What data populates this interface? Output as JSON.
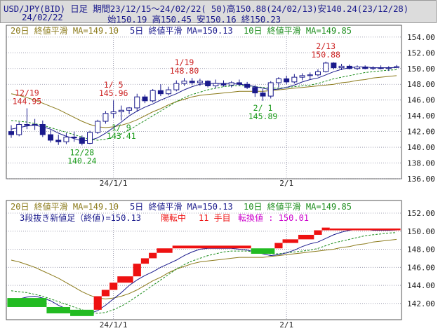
{
  "header": {
    "line1": "USD/JPY(BID) 日足 期間23/12/15～24/02/22( 50)高150.88(24/02/13)安140.24(23/12/28)",
    "date": "24/02/22",
    "ohlc": "始150.19 高150.45 安150.16 終150.23"
  },
  "colors": {
    "ma20": "#8b7a1a",
    "ma5": "#1a1a8c",
    "ma10": "#1a8c1a",
    "candle": "#1a1a8c",
    "up": "#ee1111",
    "down": "#22bb22",
    "grid": "#8a8aa0",
    "hiAnnot": "#cc2020",
    "loAnnot": "#1a9a1a",
    "prompt": "#cc00cc"
  },
  "chart_data": [
    {
      "type": "candlestick",
      "legend": {
        "ma20": "20日 終値平滑 MA=149.10",
        "ma5": "5日 終値平滑 MA=150.13",
        "ma10": "10日 終値平滑 MA=149.85"
      },
      "ylim": [
        136,
        155.5
      ],
      "y_ticks": [
        "136.00",
        "138.00",
        "140.00",
        "142.00",
        "144.00",
        "146.00",
        "148.00",
        "150.00",
        "152.00",
        "154.00"
      ],
      "x_ticks": [
        "24/1/1",
        "2/1"
      ],
      "candles": [
        [
          142.0,
          142.8,
          141.2,
          141.6
        ],
        [
          141.6,
          143.2,
          141.4,
          142.9
        ],
        [
          142.9,
          144.95,
          142.3,
          142.8
        ],
        [
          142.8,
          143.6,
          142.2,
          142.9
        ],
        [
          142.9,
          143.4,
          141.3,
          141.6
        ],
        [
          141.6,
          142.2,
          140.6,
          140.9
        ],
        [
          140.9,
          141.6,
          140.3,
          140.7
        ],
        [
          140.7,
          141.8,
          140.4,
          141.3
        ],
        [
          141.3,
          142.0,
          140.7,
          141.2
        ],
        [
          141.2,
          141.5,
          140.24,
          140.5
        ],
        [
          140.5,
          142.1,
          140.4,
          141.9
        ],
        [
          141.9,
          143.5,
          141.7,
          143.3
        ],
        [
          143.3,
          144.6,
          143.0,
          144.3
        ],
        [
          144.3,
          145.96,
          143.7,
          144.5
        ],
        [
          144.5,
          145.3,
          143.41,
          144.7
        ],
        [
          144.7,
          145.1,
          144.2,
          145.0
        ],
        [
          145.0,
          146.8,
          144.5,
          146.4
        ],
        [
          146.4,
          146.7,
          145.6,
          145.9
        ],
        [
          145.9,
          147.4,
          145.7,
          147.2
        ],
        [
          147.2,
          148.0,
          146.5,
          146.8
        ],
        [
          146.8,
          147.7,
          146.6,
          147.3
        ],
        [
          147.3,
          148.5,
          147.1,
          148.1
        ],
        [
          148.1,
          148.8,
          147.8,
          148.4
        ],
        [
          148.4,
          148.8,
          147.9,
          148.2
        ],
        [
          148.2,
          148.7,
          147.8,
          148.4
        ],
        [
          148.4,
          148.5,
          147.6,
          147.8
        ],
        [
          147.8,
          148.6,
          147.5,
          148.1
        ],
        [
          148.1,
          148.5,
          147.7,
          147.9
        ],
        [
          147.9,
          148.4,
          147.6,
          148.2
        ],
        [
          148.2,
          148.6,
          147.8,
          148.0
        ],
        [
          148.0,
          148.3,
          147.4,
          147.6
        ],
        [
          147.6,
          147.9,
          146.4,
          146.9
        ],
        [
          146.9,
          147.4,
          145.89,
          146.5
        ],
        [
          146.5,
          148.4,
          146.2,
          148.2
        ],
        [
          148.2,
          148.9,
          147.6,
          148.7
        ],
        [
          148.7,
          149.1,
          148.0,
          148.3
        ],
        [
          148.3,
          149.3,
          148.1,
          148.9
        ],
        [
          148.9,
          149.4,
          148.5,
          149.1
        ],
        [
          149.1,
          149.5,
          148.6,
          149.2
        ],
        [
          149.2,
          149.9,
          149.0,
          149.6
        ],
        [
          149.6,
          150.88,
          149.5,
          150.7
        ],
        [
          150.7,
          150.8,
          149.9,
          150.1
        ],
        [
          150.1,
          150.6,
          149.8,
          150.3
        ],
        [
          150.3,
          150.5,
          149.9,
          150.0
        ],
        [
          150.0,
          150.4,
          149.8,
          150.2
        ],
        [
          150.2,
          150.4,
          149.9,
          150.0
        ],
        [
          150.0,
          150.3,
          149.8,
          150.1
        ],
        [
          150.1,
          150.4,
          149.9,
          150.0
        ],
        [
          150.0,
          150.3,
          149.7,
          150.1
        ],
        [
          150.19,
          150.45,
          150.16,
          150.23
        ]
      ],
      "ma20": [
        146.8,
        146.6,
        146.3,
        146.0,
        145.6,
        145.2,
        144.8,
        144.3,
        143.8,
        143.3,
        142.9,
        142.6,
        142.5,
        142.6,
        142.8,
        143.1,
        143.5,
        144.0,
        144.5,
        144.9,
        145.4,
        145.8,
        146.1,
        146.4,
        146.6,
        146.7,
        146.8,
        146.9,
        147.0,
        147.1,
        147.1,
        147.1,
        147.1,
        147.2,
        147.3,
        147.4,
        147.5,
        147.6,
        147.7,
        147.8,
        147.9,
        148.0,
        148.2,
        148.3,
        148.5,
        148.6,
        148.8,
        148.9,
        149.0,
        149.1
      ],
      "ma5": [
        142.3,
        142.5,
        142.7,
        142.8,
        142.6,
        142.3,
        141.8,
        141.4,
        141.1,
        140.8,
        140.9,
        141.2,
        141.8,
        142.5,
        143.2,
        144.0,
        144.6,
        145.1,
        145.5,
        146.0,
        146.4,
        146.8,
        147.3,
        147.7,
        148.0,
        148.1,
        148.1,
        148.1,
        148.1,
        148.0,
        147.9,
        147.7,
        147.5,
        147.3,
        147.4,
        147.6,
        147.9,
        148.3,
        148.6,
        148.8,
        149.2,
        149.6,
        149.9,
        150.1,
        150.2,
        150.2,
        150.1,
        150.1,
        150.1,
        150.13
      ],
      "ma10": [
        143.4,
        143.3,
        143.2,
        143.0,
        142.8,
        142.5,
        142.2,
        141.9,
        141.6,
        141.3,
        141.0,
        140.9,
        141.0,
        141.3,
        141.7,
        142.2,
        142.8,
        143.4,
        144.0,
        144.6,
        145.2,
        145.8,
        146.3,
        146.7,
        147.0,
        147.3,
        147.5,
        147.7,
        147.8,
        147.8,
        147.8,
        147.7,
        147.6,
        147.5,
        147.5,
        147.6,
        147.7,
        147.8,
        147.9,
        148.1,
        148.4,
        148.7,
        148.9,
        149.1,
        149.3,
        149.5,
        149.6,
        149.7,
        149.8,
        149.85
      ],
      "annotations": [
        {
          "date": "12/19",
          "value": "144.95",
          "kind": "high",
          "index": 2
        },
        {
          "date": "12/28",
          "value": "140.24",
          "kind": "low",
          "index": 9
        },
        {
          "date": "1/ 5",
          "value": "145.96",
          "kind": "high",
          "index": 13
        },
        {
          "date": "1/ 9",
          "value": "143.41",
          "kind": "low",
          "index": 14
        },
        {
          "date": "1/19",
          "value": "148.80",
          "kind": "high",
          "index": 22
        },
        {
          "date": "2/ 1",
          "value": "145.89",
          "kind": "low",
          "index": 32
        },
        {
          "date": "2/13",
          "value": "150.88",
          "kind": "high",
          "index": 40
        }
      ]
    },
    {
      "type": "three-line-break",
      "legend": {
        "ma20": "20日 終値平滑 MA=149.10",
        "ma5": "5日 終値平滑 MA=150.13",
        "ma10": "10日 終値平滑 MA=149.85"
      },
      "info": {
        "left": "3段抜き新値足（終値)=150.13",
        "state": "陽転中",
        "count": "11 手目",
        "reversal": "転換値 : 150.01"
      },
      "ylim": [
        140.2,
        153.4
      ],
      "y_ticks": [
        "142.00",
        "144.00",
        "146.00",
        "148.00",
        "150.00",
        "152.00"
      ],
      "x_ticks": [
        "24/1/1",
        "2/1"
      ],
      "bricks": [
        {
          "from": 0,
          "to": 5,
          "lo": 141.6,
          "hi": 142.6,
          "dir": "down"
        },
        {
          "from": 5,
          "to": 8,
          "lo": 140.9,
          "hi": 141.6,
          "dir": "down"
        },
        {
          "from": 8,
          "to": 11,
          "lo": 140.6,
          "hi": 141.3,
          "dir": "down"
        },
        {
          "from": 11,
          "to": 12,
          "lo": 141.3,
          "hi": 142.8,
          "dir": "up"
        },
        {
          "from": 12,
          "to": 13,
          "lo": 142.8,
          "hi": 143.5,
          "dir": "up"
        },
        {
          "from": 13,
          "to": 14,
          "lo": 143.5,
          "hi": 144.3,
          "dir": "up"
        },
        {
          "from": 14,
          "to": 16,
          "lo": 144.3,
          "hi": 145.0,
          "dir": "up"
        },
        {
          "from": 16,
          "to": 17,
          "lo": 145.0,
          "hi": 146.4,
          "dir": "up"
        },
        {
          "from": 17,
          "to": 18,
          "lo": 146.4,
          "hi": 147.0,
          "dir": "up"
        },
        {
          "from": 18,
          "to": 19,
          "lo": 147.0,
          "hi": 147.6,
          "dir": "up"
        },
        {
          "from": 19,
          "to": 21,
          "lo": 147.6,
          "hi": 148.1,
          "dir": "up"
        },
        {
          "from": 21,
          "to": 31,
          "lo": 148.1,
          "hi": 148.4,
          "dir": "up"
        },
        {
          "from": 31,
          "to": 34,
          "lo": 147.5,
          "hi": 148.1,
          "dir": "down"
        },
        {
          "from": 34,
          "to": 35,
          "lo": 148.1,
          "hi": 148.7,
          "dir": "up"
        },
        {
          "from": 35,
          "to": 37,
          "lo": 148.7,
          "hi": 149.1,
          "dir": "up"
        },
        {
          "from": 37,
          "to": 39,
          "lo": 149.1,
          "hi": 149.6,
          "dir": "up"
        },
        {
          "from": 39,
          "to": 40,
          "lo": 149.6,
          "hi": 150.1,
          "dir": "up"
        },
        {
          "from": 40,
          "to": 41,
          "lo": 150.1,
          "hi": 150.4,
          "dir": "up"
        },
        {
          "from": 41,
          "to": 50,
          "lo": 150.1,
          "hi": 150.3,
          "dir": "up"
        }
      ]
    }
  ]
}
